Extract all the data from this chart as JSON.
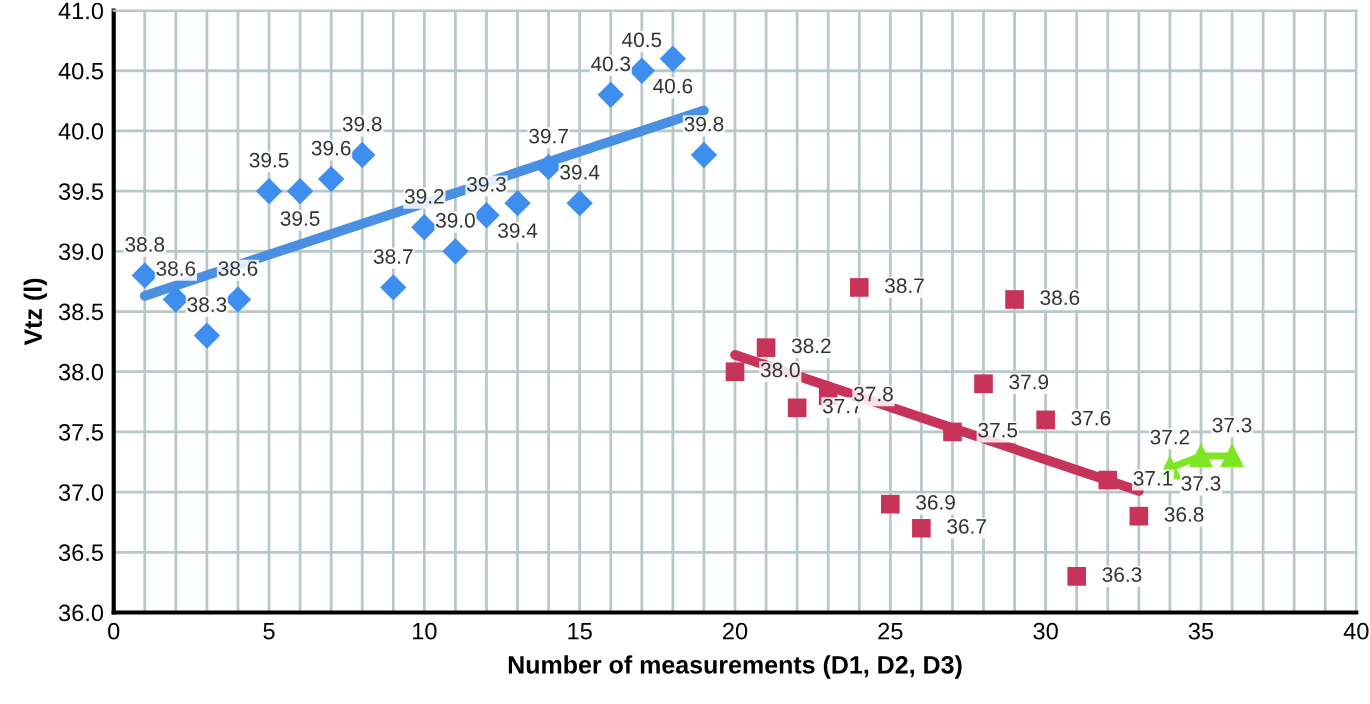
{
  "chart_data": {
    "type": "scatter",
    "xlabel": "Number of measurements (D1, D2, D3)",
    "ylabel": "Vtz (l)",
    "xlim": [
      0,
      40
    ],
    "ylim": [
      36.0,
      41.0
    ],
    "xticks": [
      0,
      {
        "value": 1,
        "label": null
      },
      {
        "value": 2,
        "label": null
      },
      {
        "value": 3,
        "label": null
      },
      {
        "value": 4,
        "label": null
      },
      5,
      {
        "value": 6,
        "label": null
      },
      {
        "value": 7,
        "label": null
      },
      {
        "value": 8,
        "label": null
      },
      {
        "value": 9,
        "label": null
      },
      10,
      {
        "value": 11,
        "label": null
      },
      {
        "value": 12,
        "label": null
      },
      {
        "value": 13,
        "label": null
      },
      {
        "value": 14,
        "label": null
      },
      15,
      {
        "value": 16,
        "label": null
      },
      {
        "value": 17,
        "label": null
      },
      {
        "value": 18,
        "label": null
      },
      {
        "value": 19,
        "label": null
      },
      20,
      {
        "value": 21,
        "label": null
      },
      {
        "value": 22,
        "label": null
      },
      {
        "value": 23,
        "label": null
      },
      {
        "value": 24,
        "label": null
      },
      25,
      {
        "value": 26,
        "label": null
      },
      {
        "value": 27,
        "label": null
      },
      {
        "value": 28,
        "label": null
      },
      {
        "value": 29,
        "label": null
      },
      30,
      {
        "value": 31,
        "label": null
      },
      {
        "value": 32,
        "label": null
      },
      {
        "value": 33,
        "label": null
      },
      {
        "value": 34,
        "label": null
      },
      35,
      {
        "value": 36,
        "label": null
      },
      {
        "value": 37,
        "label": null
      },
      {
        "value": 38,
        "label": null
      },
      {
        "value": 39,
        "label": null
      },
      40
    ],
    "yticks": [
      {
        "value": 36.0,
        "label": "36.0"
      },
      36.5,
      {
        "value": 37.0,
        "label": "37.0"
      },
      37.5,
      {
        "value": 38.0,
        "label": "38.0"
      },
      38.5,
      {
        "value": 39.0,
        "label": "39.0"
      },
      39.5,
      {
        "value": 40.0,
        "label": "40.0"
      },
      40.5,
      {
        "value": 41.0,
        "label": "41.0"
      }
    ],
    "grid": true,
    "series": [
      {
        "marker": "diamond",
        "color": "#3e8ef0",
        "x": [
          1,
          2,
          3,
          4,
          5,
          6,
          7,
          8,
          9,
          10,
          11,
          12,
          13,
          14,
          15,
          16,
          17,
          18,
          19
        ],
        "values": [
          38.8,
          38.6,
          38.3,
          38.6,
          39.5,
          39.5,
          39.6,
          39.8,
          38.7,
          39.2,
          39.0,
          39.3,
          39.4,
          39.7,
          39.4,
          40.3,
          40.5,
          40.6,
          39.8
        ],
        "value_labels": [
          "38.8",
          "38.6",
          "38.3",
          "38.6",
          "39.5",
          "39.5",
          "39.6",
          "39.8",
          "38.7",
          "39.2",
          "39.0",
          "39.3",
          "39.4",
          "39.7",
          "39.4",
          "40.3",
          "40.5",
          "40.6",
          "39.8"
        ]
      },
      {
        "type": "line",
        "marker": "none",
        "color": "#4a90e2",
        "x": [
          1,
          19
        ],
        "values": [
          38.63,
          40.17
        ]
      },
      {
        "marker": "square",
        "color": "#c8335a",
        "x": [
          20,
          21,
          22,
          23,
          24,
          25,
          26,
          27,
          28,
          29,
          30,
          31,
          32,
          33
        ],
        "values": [
          38.0,
          38.2,
          37.7,
          37.8,
          38.7,
          36.9,
          36.7,
          37.5,
          37.9,
          38.6,
          37.6,
          36.3,
          37.1,
          36.8
        ],
        "value_labels": [
          "38.0",
          "38.2",
          "37.7",
          "37.8",
          "38.7",
          "36.9",
          "36.7",
          "37.5",
          "37.9",
          "38.6",
          "37.6",
          "36.3",
          "37.1",
          "36.8"
        ]
      },
      {
        "type": "line",
        "marker": "none",
        "color": "#c8335a",
        "x": [
          20,
          33
        ],
        "values": [
          38.14,
          37.01
        ]
      },
      {
        "type": "line",
        "marker": "triangle",
        "color": "#7ee622",
        "x": [
          34,
          35,
          36
        ],
        "values": [
          37.2,
          37.3,
          37.3
        ],
        "value_labels": [
          "37.2",
          "37.3",
          "37.3"
        ]
      }
    ]
  }
}
